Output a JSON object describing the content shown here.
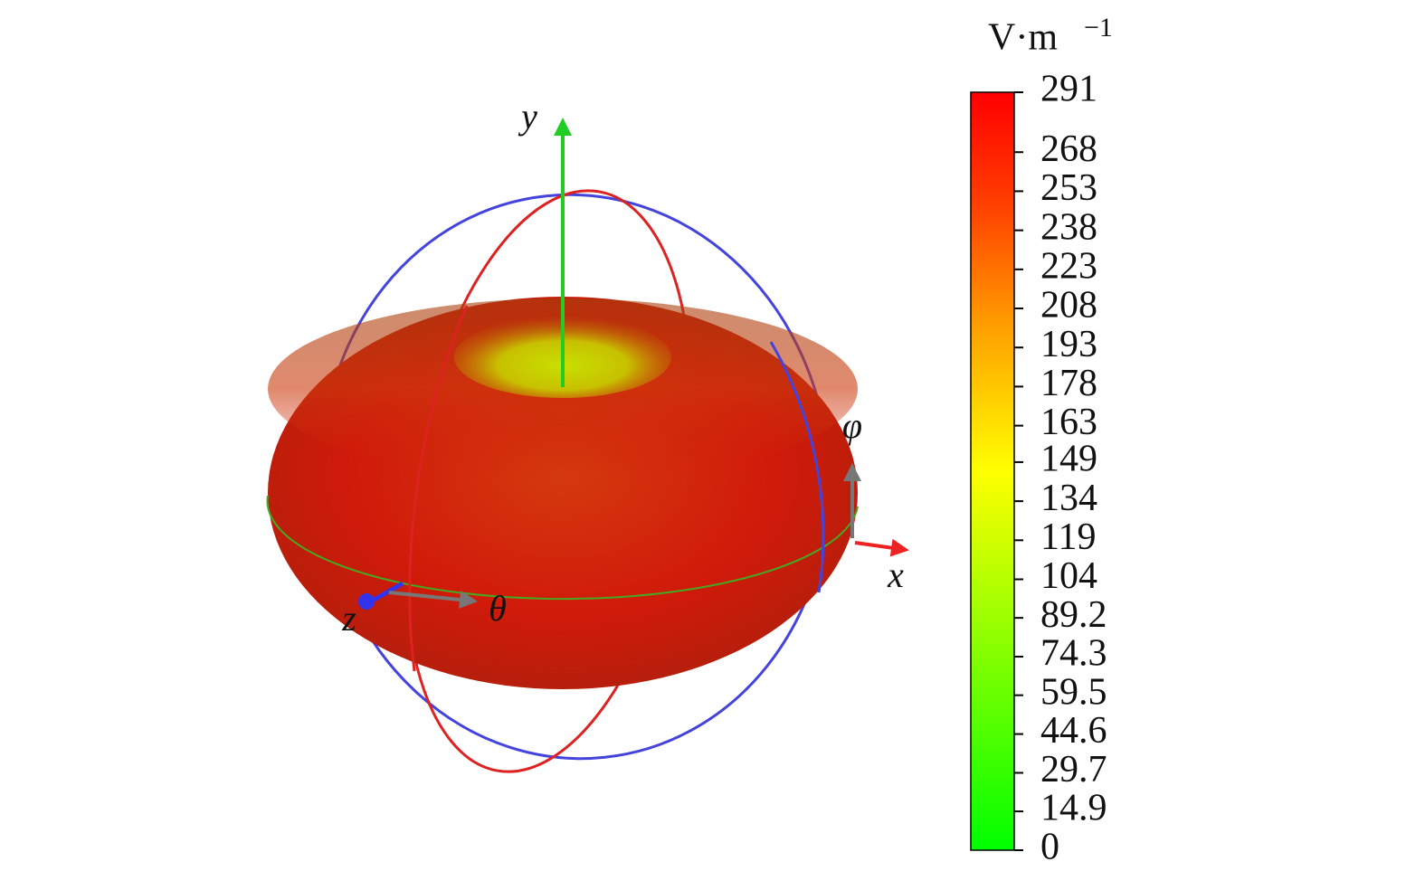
{
  "chart_data": {
    "type": "colorbar-3d",
    "axis_labels": {
      "x": "x",
      "y": "y",
      "z": "z",
      "theta": "θ",
      "phi": "φ"
    },
    "colorbar": {
      "unit": "V·m",
      "unit_exponent": "−1",
      "lim": [
        0,
        291
      ],
      "ticks": [
        0,
        14.9,
        29.7,
        44.6,
        59.5,
        74.3,
        89.2,
        104,
        119,
        134,
        149,
        163,
        178,
        193,
        208,
        223,
        238,
        253,
        268,
        291
      ]
    }
  }
}
